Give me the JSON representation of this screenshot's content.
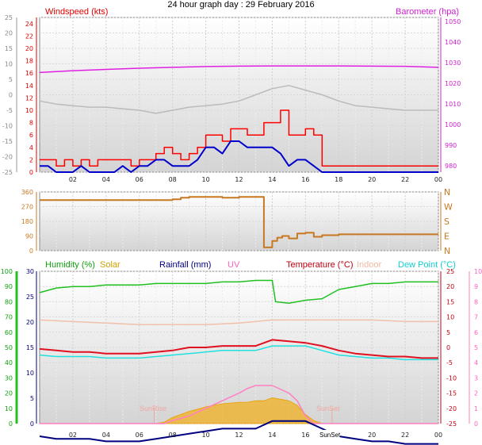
{
  "page_title": "24 hour graph day : 29 February 2016",
  "colors": {
    "windspeed": "#ff0000",
    "wind_avg": "#0000cc",
    "barometer": "#e020e0",
    "pressure_line": "#bbbbbb",
    "direction": "#c87820",
    "humidity": "#20c020",
    "solar": "#f0b020",
    "rainfall": "#000080",
    "uv": "#ff80c0",
    "temperature": "#e01020",
    "indoor": "#f0c0a8",
    "dewpoint": "#20e0e0",
    "plot_bg_top": "#ffffff",
    "plot_bg_bottom": "#d8d8d8"
  },
  "panel1": {
    "left_title": "Windspeed (kts)",
    "right_title": "Barometer (hpa)"
  },
  "panel3": {
    "humidity_label": "Humidity (%)",
    "solar_label": "Solar",
    "rainfall_label": "Rainfall (mm)",
    "uv_label": "UV",
    "temperature_label": "Temperature (°C)",
    "indoor_label": "Indoor",
    "dewpoint_label": "Dew Point (°C)",
    "sunrise_label": "SunRise",
    "sunset_label": "SunSet",
    "sunset_axis_label": "SunSet"
  },
  "chart_data": [
    {
      "type": "line",
      "title": "24 hour graph day : 29 February 2016",
      "xlabel": "",
      "x_ticks": [
        "02",
        "04",
        "06",
        "08",
        "10",
        "12",
        "14",
        "16",
        "18",
        "20",
        "22",
        "00"
      ],
      "y_axis_outer": {
        "ticks": [
          "-25",
          "-20",
          "-15",
          "-10",
          "-5",
          "0",
          "5",
          "10",
          "15",
          "20",
          "25"
        ],
        "ylim": [
          -25,
          25
        ]
      },
      "y_axis_left": {
        "label": "Windspeed (kts)",
        "ticks": [
          "0",
          "2",
          "4",
          "6",
          "8",
          "10",
          "12",
          "14",
          "16",
          "18",
          "20",
          "22",
          "24"
        ],
        "ylim": [
          0,
          25
        ]
      },
      "y_axis_right": {
        "label": "Barometer (hpa)",
        "ticks": [
          "980",
          "990",
          "1000",
          "1010",
          "1020",
          "1030",
          "1040",
          "1050"
        ],
        "ylim": [
          977,
          1052
        ]
      },
      "grid": true,
      "series": [
        {
          "name": "Windspeed (kts)",
          "axis": "left",
          "x": [
            0,
            0.5,
            1,
            1.5,
            2,
            2.5,
            3,
            3.5,
            4,
            4.5,
            5,
            5.5,
            6,
            6.5,
            7,
            7.5,
            8,
            8.5,
            9,
            9.5,
            10,
            10.5,
            11,
            11.5,
            12,
            12.5,
            13,
            13.5,
            14,
            14.5,
            15,
            15.5,
            16,
            16.5,
            17,
            17.5,
            18,
            19,
            20,
            21,
            22,
            23,
            24
          ],
          "values": [
            2,
            2,
            1,
            2,
            1,
            2,
            1,
            2,
            2,
            2,
            2,
            1,
            2,
            2,
            3,
            4,
            3,
            2,
            3,
            4,
            6,
            6,
            5,
            7,
            7,
            6,
            6,
            8,
            8,
            10,
            6,
            6,
            7,
            6,
            1,
            1,
            1,
            1,
            1,
            1,
            1,
            1,
            1
          ]
        },
        {
          "name": "Wind average",
          "axis": "left",
          "x": [
            0,
            0.5,
            1,
            1.5,
            2,
            2.5,
            3,
            3.5,
            4,
            4.5,
            5,
            5.5,
            6,
            6.5,
            7,
            7.5,
            8,
            8.5,
            9,
            9.5,
            10,
            10.5,
            11,
            11.5,
            12,
            12.5,
            13,
            13.5,
            14,
            14.5,
            15,
            15.5,
            16,
            16.5,
            17,
            17.5,
            18,
            19,
            20,
            21,
            22,
            23,
            24
          ],
          "values": [
            1,
            1,
            0,
            0,
            0,
            1,
            0,
            0,
            0,
            0,
            1,
            0,
            1,
            1,
            2,
            2,
            1,
            1,
            1,
            2,
            4,
            4,
            3,
            5,
            5,
            4,
            4,
            4,
            4,
            3,
            1,
            2,
            2,
            1,
            0,
            0,
            0,
            0,
            0,
            0,
            0,
            0,
            0
          ]
        },
        {
          "name": "Barometer (hpa)",
          "axis": "right",
          "x": [
            0,
            2,
            4,
            6,
            8,
            10,
            12,
            14,
            16,
            18,
            20,
            22,
            24
          ],
          "values": [
            1025.3,
            1026.2,
            1026.8,
            1027.4,
            1027.8,
            1028.2,
            1028.4,
            1028.5,
            1028.5,
            1028.5,
            1028.4,
            1028.3,
            1027.8
          ]
        },
        {
          "name": "Pressure trace",
          "axis": "outer",
          "x": [
            0,
            1,
            2,
            3,
            4,
            5,
            6,
            7,
            8,
            9,
            10,
            11,
            12,
            13,
            14,
            15,
            16,
            17,
            18,
            19,
            20,
            21,
            22,
            23,
            24
          ],
          "values": [
            -2,
            -3,
            -3.5,
            -4,
            -4,
            -4.5,
            -5,
            -6,
            -5,
            -4,
            -3.5,
            -3,
            -2,
            0,
            2,
            3,
            1.5,
            0,
            -2,
            -3.5,
            -4,
            -4.5,
            -5,
            -5,
            -5
          ]
        }
      ]
    },
    {
      "type": "line",
      "title": "",
      "x_ticks": [
        "02",
        "04",
        "06",
        "08",
        "10",
        "12",
        "14",
        "16",
        "18",
        "20",
        "22",
        "00"
      ],
      "y_axis_left": {
        "ticks": [
          "0",
          "90",
          "180",
          "270",
          "360"
        ],
        "ylim": [
          0,
          360
        ]
      },
      "y_axis_right": {
        "ticks": [
          "N",
          "E",
          "S",
          "W",
          "N"
        ]
      },
      "grid": true,
      "series": [
        {
          "name": "Wind direction",
          "x": [
            0,
            1,
            2,
            3,
            4,
            5,
            6,
            7,
            8,
            8.5,
            9,
            10,
            11,
            12,
            13,
            13.5,
            14,
            14.3,
            14.6,
            15,
            15.5,
            16,
            16.5,
            17,
            18,
            19,
            20,
            21,
            22,
            23,
            24
          ],
          "values": [
            310,
            310,
            310,
            310,
            310,
            310,
            310,
            310,
            315,
            325,
            330,
            330,
            325,
            330,
            330,
            20,
            60,
            80,
            90,
            75,
            105,
            110,
            85,
            95,
            100,
            100,
            100,
            100,
            100,
            100,
            100
          ]
        }
      ]
    },
    {
      "type": "line",
      "title": "",
      "x_ticks": [
        "02",
        "04",
        "06",
        "08",
        "10",
        "12",
        "14",
        "16",
        "18",
        "20",
        "22",
        "00"
      ],
      "y_axis_humidity": {
        "label": "Humidity (%)",
        "ticks": [
          "0",
          "10",
          "20",
          "30",
          "40",
          "50",
          "60",
          "70",
          "80",
          "90",
          "100"
        ],
        "ylim": [
          0,
          100
        ]
      },
      "y_axis_rain": {
        "label": "Rainfall (mm)",
        "ticks": [
          "0",
          "5",
          "10",
          "15",
          "20",
          "25",
          "30"
        ],
        "ylim": [
          0,
          30
        ]
      },
      "y_axis_temperature": {
        "label": "Temperature (°C)",
        "ticks": [
          "-25",
          "-20",
          "-15",
          "-10",
          "-5",
          "0",
          "5",
          "10",
          "15",
          "20",
          "25"
        ],
        "ylim": [
          -25,
          25
        ]
      },
      "y_axis_uv": {
        "label": "UV",
        "ticks": [
          "0",
          "1",
          "2",
          "3",
          "4",
          "5",
          "6",
          "7",
          "8",
          "9",
          "10"
        ],
        "ylim": [
          0,
          10
        ]
      },
      "grid": true,
      "annotations": [
        "SunRise",
        "SunSet"
      ],
      "series": [
        {
          "name": "Humidity (%)",
          "axis": "humidity",
          "x": [
            0,
            1,
            2,
            3,
            4,
            5,
            6,
            7,
            8,
            9,
            10,
            11,
            12,
            13,
            14,
            14.2,
            15,
            16,
            17,
            18,
            19,
            20,
            21,
            22,
            23,
            24
          ],
          "values": [
            86,
            89,
            90,
            90,
            91,
            91,
            91,
            92,
            92,
            92,
            92,
            93,
            93,
            94,
            94,
            80,
            79,
            81,
            82,
            88,
            90,
            92,
            92,
            93,
            93,
            93
          ],
          "note": ""
        },
        {
          "name": "Temperature (°C)",
          "axis": "temperature",
          "x": [
            0,
            1,
            2,
            3,
            4,
            5,
            6,
            7,
            8,
            9,
            10,
            11,
            12,
            13,
            14,
            15,
            16,
            17,
            18,
            19,
            20,
            21,
            22,
            23,
            24
          ],
          "values": [
            -0.5,
            -1,
            -1.5,
            -1.5,
            -2,
            -2,
            -2,
            -1.5,
            -1,
            0,
            0,
            0.5,
            0.5,
            0.5,
            2.5,
            2,
            1.5,
            0.5,
            -1,
            -2,
            -2.5,
            -3,
            -3,
            -3.5,
            -3.5
          ]
        },
        {
          "name": "Dew Point (°C)",
          "axis": "temperature",
          "x": [
            0,
            1,
            2,
            3,
            4,
            5,
            6,
            7,
            8,
            9,
            10,
            11,
            12,
            13,
            14,
            15,
            16,
            17,
            18,
            19,
            20,
            21,
            22,
            23,
            24
          ],
          "values": [
            -2.5,
            -3,
            -3,
            -3,
            -3.5,
            -3.5,
            -3.5,
            -3,
            -2.5,
            -2,
            -1.5,
            -1,
            -1,
            -1,
            0.5,
            0.5,
            0.5,
            -1,
            -2.5,
            -3,
            -3.5,
            -3.5,
            -4,
            -4,
            -4
          ]
        },
        {
          "name": "Indoor",
          "axis": "temperature",
          "x": [
            0,
            2,
            4,
            6,
            8,
            10,
            12,
            14,
            16,
            18,
            20,
            22,
            24
          ],
          "values": [
            9,
            8.5,
            8,
            7.5,
            7.5,
            7.5,
            8,
            9,
            9,
            9,
            9,
            8.5,
            8.5
          ]
        },
        {
          "name": "Solar",
          "axis": "humidity",
          "x": [
            0,
            7,
            7.5,
            8,
            9,
            10,
            11,
            12,
            12.5,
            13,
            13.5,
            14,
            14.5,
            15,
            15.5,
            16,
            16.5,
            17,
            24
          ],
          "values": [
            0,
            0,
            1,
            4,
            8,
            11,
            13,
            14,
            14,
            15,
            15,
            17,
            16,
            15,
            12,
            6,
            2,
            0,
            0
          ]
        },
        {
          "name": "UV",
          "axis": "uv",
          "x": [
            0,
            7.5,
            8,
            9,
            10,
            11,
            12,
            12.5,
            13,
            14,
            15,
            15.5,
            16,
            16.5,
            24
          ],
          "values": [
            0,
            0,
            0.2,
            0.5,
            1,
            1.5,
            2,
            2.3,
            2.5,
            2.5,
            2,
            1.5,
            0.5,
            0,
            0
          ]
        },
        {
          "name": "Rainfall (mm)",
          "axis": "rain",
          "x": [
            0,
            24
          ],
          "values": [
            0,
            0
          ]
        }
      ]
    }
  ]
}
